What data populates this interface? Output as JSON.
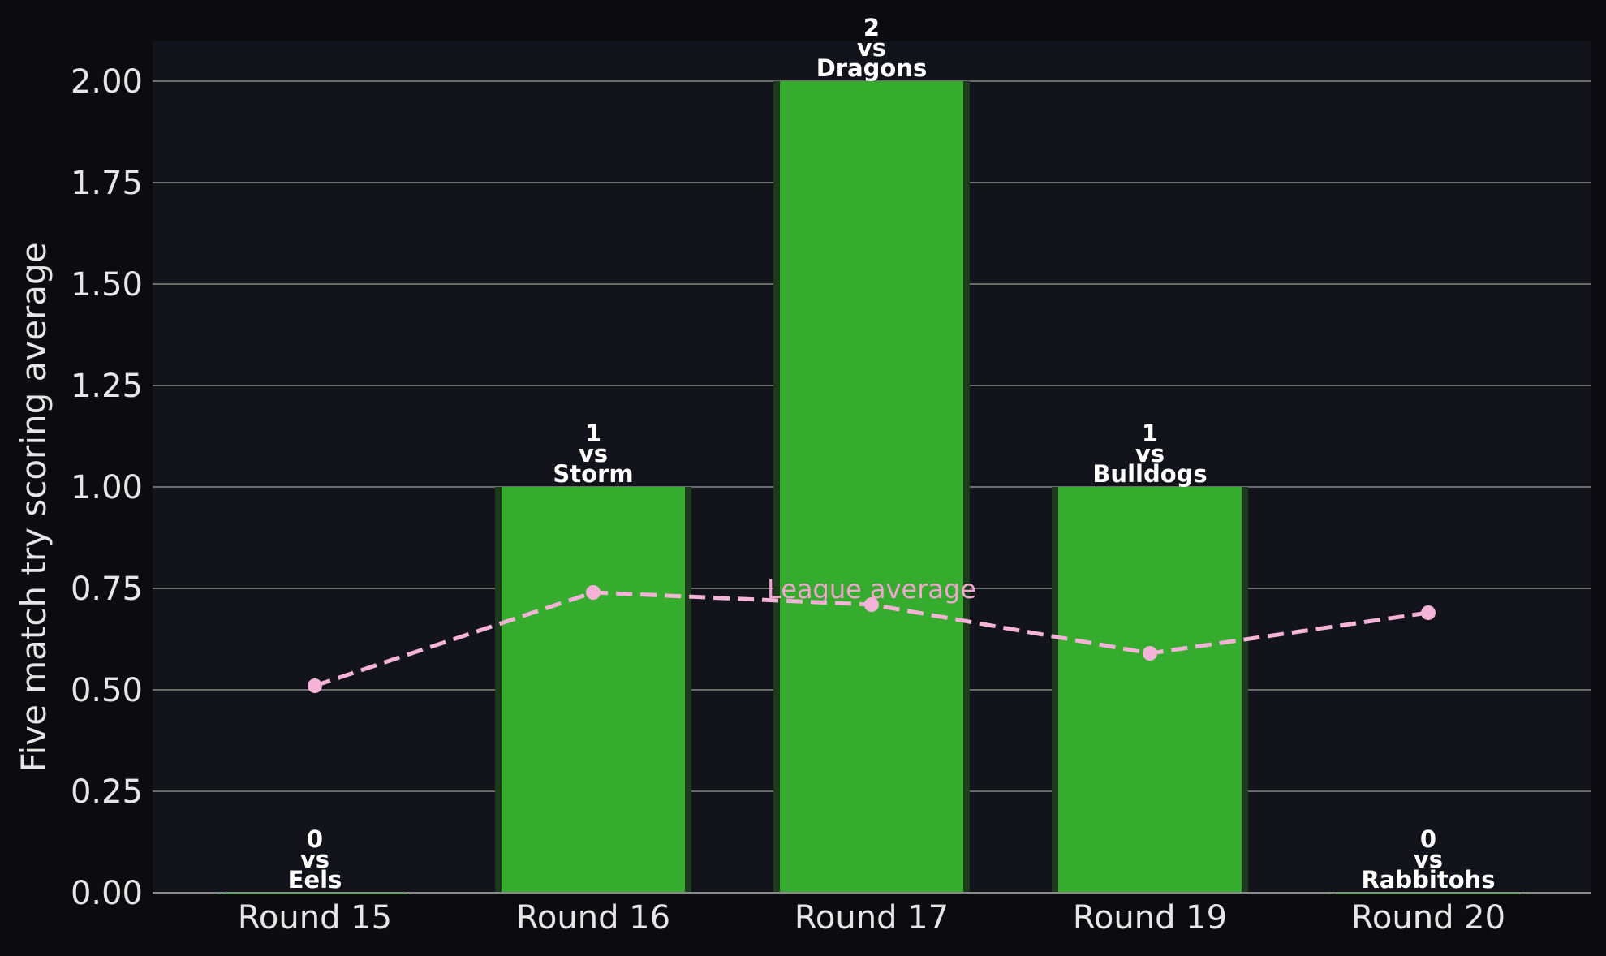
{
  "chart_data": {
    "type": "bar",
    "categories": [
      "Round 15",
      "Round 16",
      "Round 17",
      "Round 19",
      "Round 20"
    ],
    "ylabel": "Five match try scoring average",
    "xlabel": "",
    "ylim": [
      0,
      2.1
    ],
    "yticks": [
      "0.00",
      "0.25",
      "0.50",
      "0.75",
      "1.00",
      "1.25",
      "1.50",
      "1.75",
      "2.00"
    ],
    "grid": "horizontal",
    "bars": {
      "values": [
        0,
        1,
        2,
        1,
        0
      ],
      "labels": [
        {
          "value": "0",
          "vs": "vs",
          "opponent": "Eels"
        },
        {
          "value": "1",
          "vs": "vs",
          "opponent": "Storm"
        },
        {
          "value": "2",
          "vs": "vs",
          "opponent": "Dragons"
        },
        {
          "value": "1",
          "vs": "vs",
          "opponent": "Bulldogs"
        },
        {
          "value": "0",
          "vs": "vs",
          "opponent": "Rabbitohs"
        }
      ],
      "color": "#36ac2f"
    },
    "line": {
      "label": "League average",
      "values": [
        0.51,
        0.74,
        0.71,
        0.59,
        0.69
      ],
      "color": "#f5b3d7"
    },
    "colors": {
      "background": "#0b0b10",
      "plot_background": "#12131b",
      "grid": "#6b6b6b",
      "bar_shadow": "#1d3a1c"
    }
  }
}
